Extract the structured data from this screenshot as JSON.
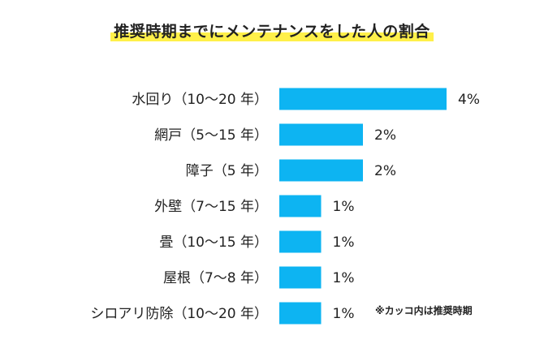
{
  "chart_data": {
    "type": "bar",
    "orientation": "horizontal",
    "title": "推奨時期までにメンテナンスをした人の割合",
    "categories": [
      "水回り（10～20 年）",
      "網戸（5～15 年）",
      "障子（5 年）",
      "外壁（7～15 年）",
      "畳（10～15 年）",
      "屋根（7～8 年）",
      "シロアリ防除（10～20 年）"
    ],
    "values": [
      4,
      2,
      2,
      1,
      1,
      1,
      1
    ],
    "value_labels": [
      "4%",
      "2%",
      "2%",
      "1%",
      "1%",
      "1%",
      "1%"
    ],
    "unit": "%",
    "xlim": [
      0,
      4
    ],
    "grid": false,
    "bar_color": "#0db4f2",
    "note": "※カッコ内は推奨時期"
  }
}
